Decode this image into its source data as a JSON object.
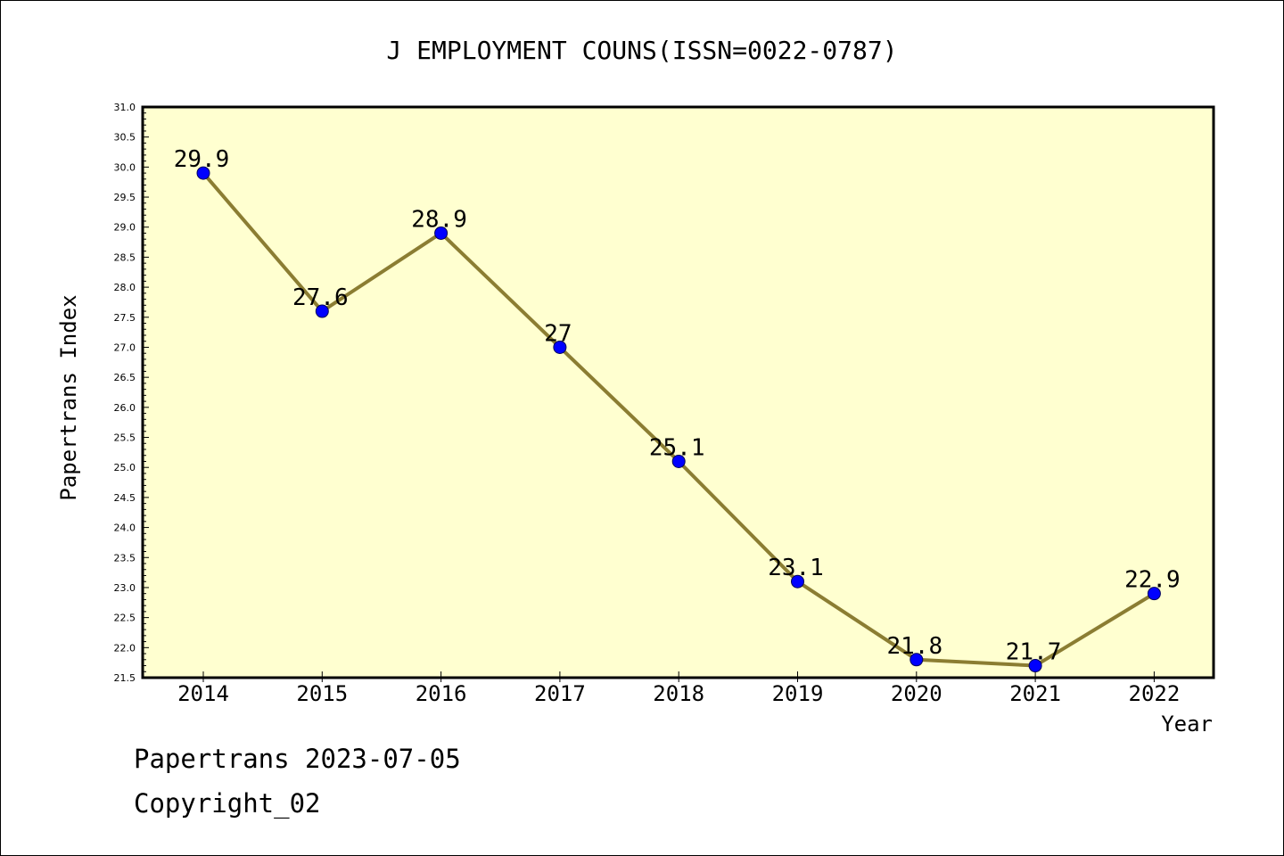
{
  "footer": {
    "line1": "Papertrans 2023-07-05",
    "line2": "Copyright_02"
  },
  "colors": {
    "plot_background": "#ffffd0",
    "line": "#8b7d32",
    "marker_fill": "#0000ff",
    "marker_stroke": "#00005a",
    "axis": "#000000"
  },
  "chart_data": {
    "type": "line",
    "title": "J EMPLOYMENT COUNS(ISSN=0022-0787)",
    "xlabel": "Year",
    "ylabel": "Papertrans Index",
    "ylim": [
      21.5,
      31.0
    ],
    "ytick_step_major": 0.5,
    "ytick_step_minor": 0.1,
    "ytick_labels": [
      "21.5",
      "22.0",
      "22.5",
      "23.0",
      "23.5",
      "24.0",
      "24.5",
      "25.0",
      "25.5",
      "26.0",
      "26.5",
      "27.0",
      "27.5",
      "28.0",
      "28.5",
      "29.0",
      "29.5",
      "30.0",
      "30.5",
      "31.0"
    ],
    "categories": [
      "2014",
      "2015",
      "2016",
      "2017",
      "2018",
      "2019",
      "2020",
      "2021",
      "2022"
    ],
    "values": [
      29.9,
      27.6,
      28.9,
      27.0,
      25.1,
      23.1,
      21.8,
      21.7,
      22.9
    ],
    "data_labels": [
      "29.9",
      "27.6",
      "28.9",
      "27",
      "25.1",
      "23.1",
      "21.8",
      "21.7",
      "22.9"
    ],
    "grid": false,
    "legend": "none"
  }
}
